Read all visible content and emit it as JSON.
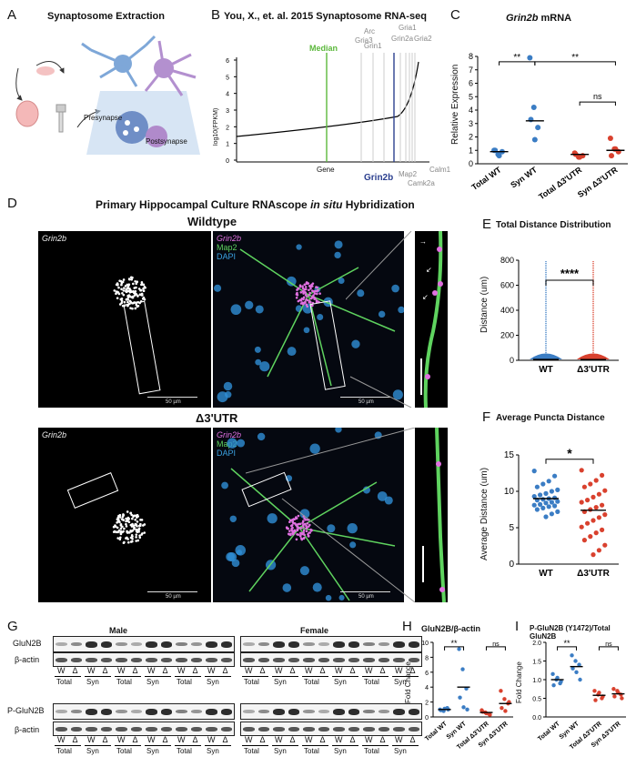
{
  "panels": {
    "A": {
      "letter": "A",
      "title": "Synaptosome Extraction",
      "presynapse": "Presynapse",
      "postsynapse": "Postsynapse"
    },
    "B": {
      "letter": "B",
      "title": "You, X., et. al. 2015 Synaptosome RNA-seq",
      "ylabel": "log10(FPKM)",
      "xlabel": "Gene",
      "yticks": [
        "6",
        "5",
        "4",
        "3",
        "2",
        "1",
        "0"
      ],
      "labels_top": [
        "Gria3",
        "Arc",
        "Grin1",
        "Grin2a",
        "Gria1",
        "Gria2"
      ],
      "median": "Median",
      "grin2b": "Grin2b",
      "labels_bottom": [
        "Map2",
        "Camk2a",
        "Calm1"
      ]
    },
    "C": {
      "letter": "C",
      "title": "Grin2b",
      "title_suffix": " mRNA",
      "ylabel": "Relative Expression",
      "yticks": [
        "8",
        "7",
        "6",
        "5",
        "4",
        "3",
        "2",
        "1",
        "0"
      ],
      "xcats": [
        "Total WT",
        "Syn WT",
        "Total Δ3'UTR",
        "Syn Δ3'UTR"
      ],
      "sig1": "**",
      "sig2": "**",
      "sig3": "ns"
    },
    "D": {
      "letter": "D",
      "title_pre": "Primary Hippocampal Culture RNAscope ",
      "title_it": "in situ",
      "title_post": " Hybridization",
      "wt": "Wildtype",
      "utr": "Δ3'UTR",
      "grin2b": "Grin2b",
      "map2": "Map2",
      "dapi": "DAPI",
      "scale": "50 µm"
    },
    "E": {
      "letter": "E",
      "title": "Total Distance Distribution",
      "ylabel": "Distance (um)",
      "yticks": [
        "800",
        "600",
        "400",
        "200",
        "0"
      ],
      "xcats": [
        "WT",
        "Δ3'UTR"
      ],
      "sig": "****"
    },
    "F": {
      "letter": "F",
      "title": "Average Puncta Distance",
      "ylabel": "Average Distance (um)",
      "yticks": [
        "15",
        "10",
        "5",
        "0"
      ],
      "xcats": [
        "WT",
        "Δ3'UTR"
      ],
      "sig": "*"
    },
    "G": {
      "letter": "G",
      "male": "Male",
      "female": "Female",
      "rows": [
        "GluN2B",
        "β-actin",
        "P-GluN2B",
        "β-actin"
      ],
      "lane_w": "W",
      "lane_d": "Δ",
      "groups": [
        "Total",
        "Syn",
        "Total",
        "Syn",
        "Total",
        "Syn"
      ]
    },
    "H": {
      "letter": "H",
      "title": "GluN2B/β-actin",
      "ylabel": "Fold Change",
      "yticks": [
        "10",
        "8",
        "6",
        "4",
        "2",
        "0"
      ],
      "xcats": [
        "Total WT",
        "Syn WT",
        "Total Δ3'UTR",
        "Syn Δ3'UTR"
      ],
      "sig1": "**",
      "sig2": "ns"
    },
    "I": {
      "letter": "I",
      "title": "P-GluN2B (Y1472)/Total GluN2B",
      "ylabel": "Fold Change",
      "yticks": [
        "2.0",
        "1.5",
        "1.0",
        "0.5",
        "0.0"
      ],
      "xcats": [
        "Total WT",
        "Syn WT",
        "Total Δ3'UTR",
        "Syn Δ3'UTR"
      ],
      "sig1": "**",
      "sig2": "ns"
    }
  },
  "colors": {
    "wt": "#3b7dc4",
    "utr": "#d9412e",
    "median": "#5cb83c",
    "grin2b": "#2b3f8f",
    "magenta": "#e070e0",
    "green": "#5fd35f",
    "blue": "#3aa0e0"
  },
  "chart_data": [
    {
      "type": "scatter",
      "panel": "C",
      "ylim": [
        0,
        8
      ],
      "categories": [
        "Total WT",
        "Syn WT",
        "Total Δ3'UTR",
        "Syn Δ3'UTR"
      ],
      "points": [
        [
          1.0,
          0.7,
          0.9,
          1.0,
          0.6
        ],
        [
          7.9,
          4.2,
          2.7,
          3.3,
          1.8
        ],
        [
          0.8,
          0.5,
          0.6,
          0.7,
          0.5
        ],
        [
          1.9,
          1.1,
          0.9,
          0.6,
          1.1
        ]
      ],
      "medians": [
        0.9,
        3.2,
        0.7,
        1.0
      ]
    },
    {
      "type": "scatter",
      "panel": "F",
      "ylim": [
        0,
        15
      ],
      "categories": [
        "WT",
        "Δ3'UTR"
      ],
      "points": [
        [
          12.8,
          12.1,
          11.4,
          11.0,
          10.6,
          10.2,
          10.0,
          9.7,
          9.5,
          9.3,
          9.1,
          9.0,
          8.9,
          8.8,
          8.6,
          8.5,
          8.4,
          8.2,
          8.1,
          8.0,
          7.9,
          7.7,
          7.5,
          7.2,
          6.9,
          6.5
        ],
        [
          12.9,
          12.2,
          11.5,
          11.0,
          10.6,
          10.1,
          9.6,
          9.2,
          8.8,
          8.5,
          8.1,
          7.8,
          7.5,
          7.2,
          6.8,
          6.4,
          6.0,
          5.6,
          5.1,
          4.7,
          4.3,
          3.8,
          3.3,
          2.6,
          1.9,
          1.3
        ]
      ],
      "medians": [
        9.0,
        7.4
      ]
    },
    {
      "type": "scatter",
      "panel": "H",
      "ylim": [
        0,
        10
      ],
      "categories": [
        "Total WT",
        "Syn WT",
        "Total Δ3'UTR",
        "Syn Δ3'UTR"
      ],
      "points": [
        [
          1.0,
          0.8,
          1.2,
          0.9,
          1.1,
          1.0
        ],
        [
          9.1,
          6.4,
          3.8,
          2.6,
          1.3,
          1.0
        ],
        [
          0.9,
          0.6,
          0.4,
          0.7,
          0.5,
          0.3
        ],
        [
          3.5,
          2.4,
          1.8,
          1.2,
          0.8,
          2.0
        ]
      ],
      "medians": [
        1.0,
        4.0,
        0.6,
        1.8
      ]
    },
    {
      "type": "scatter",
      "panel": "I",
      "ylim": [
        0,
        2
      ],
      "categories": [
        "Total WT",
        "Syn WT",
        "Total Δ3'UTR",
        "Syn Δ3'UTR"
      ],
      "points": [
        [
          1.15,
          1.0,
          0.9,
          0.85,
          1.05,
          0.95
        ],
        [
          1.65,
          1.5,
          1.4,
          1.3,
          1.2,
          1.0
        ],
        [
          0.7,
          0.6,
          0.5,
          0.45,
          0.65,
          0.55
        ],
        [
          0.75,
          0.7,
          0.6,
          0.55,
          0.65,
          0.5
        ]
      ],
      "medians": [
        1.0,
        1.35,
        0.58,
        0.62
      ]
    },
    {
      "type": "scatter",
      "panel": "E",
      "ylim": [
        0,
        800
      ],
      "categories": [
        "WT",
        "Δ3'UTR"
      ],
      "medians": [
        7,
        6
      ]
    }
  ]
}
